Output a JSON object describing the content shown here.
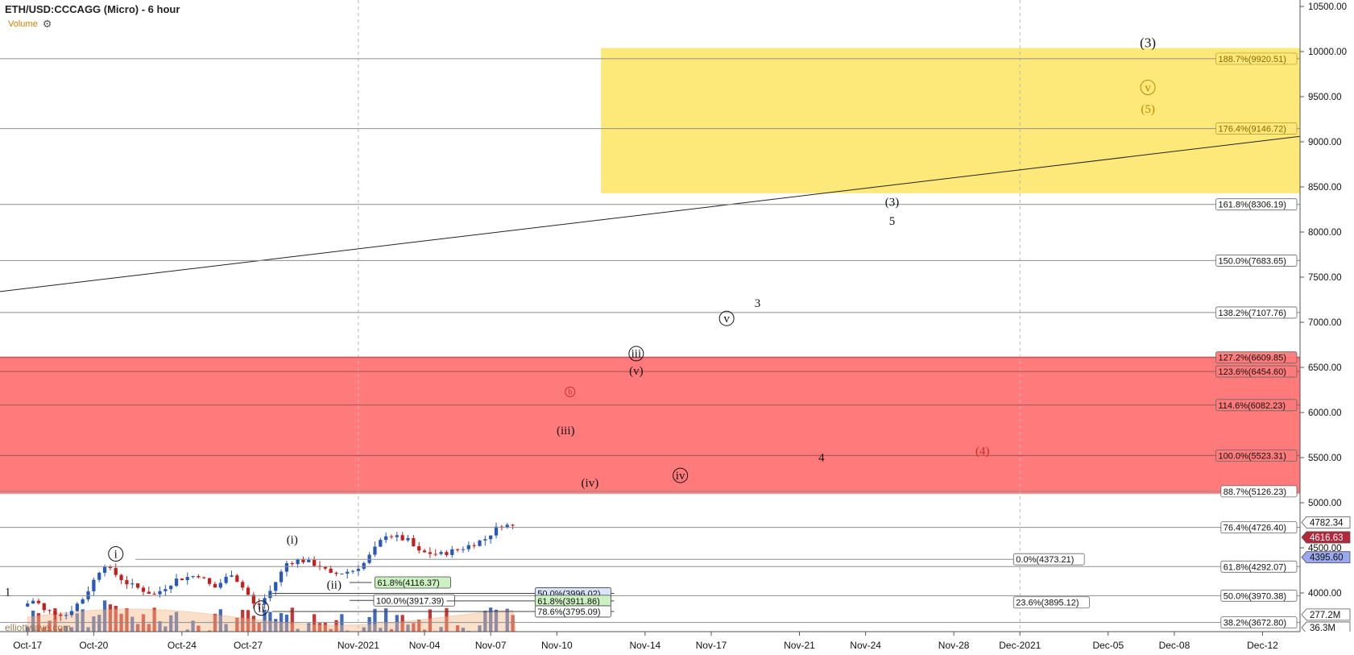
{
  "header": {
    "title": "ETH/USD:CCCAGG (Micro) - 6 hour",
    "volume_label": "Volume",
    "settings_icon": "gear-icon"
  },
  "watermark": "elliottwave.com",
  "colors": {
    "yellow_zone": "#fde97a",
    "red_zone": "#ff7a7a",
    "up": "#2a58b8",
    "down": "#c21f1f",
    "volume_up": "#2a58b8",
    "volume_down": "#c21f1f",
    "volume_ma": "#f6b98a",
    "price_tag_last": "#b3283a",
    "price_tag_blue": "#9aa8ee",
    "fib_green": "#cdf0c2",
    "fib_blue": "#d9e4fb",
    "wave_red": "#c92a2a",
    "wave_gold": "#b88a00"
  },
  "chart_data": {
    "type": "candlestick",
    "title": "ETH/USD:CCCAGG (Micro) - 6 hour",
    "y_axis": {
      "min": 3600,
      "max": 10600,
      "position": "right",
      "ticks": [
        {
          "value": 10500,
          "label": "10500.00"
        },
        {
          "value": 10000,
          "label": "10000.00"
        },
        {
          "value": 9500,
          "label": "9500.00"
        },
        {
          "value": 9000,
          "label": "9000.00"
        },
        {
          "value": 8500,
          "label": "8500.00"
        },
        {
          "value": 8000,
          "label": "8000.00"
        },
        {
          "value": 7500,
          "label": "7500.00"
        },
        {
          "value": 7000,
          "label": "7000.00"
        },
        {
          "value": 6500,
          "label": "6500.00"
        },
        {
          "value": 6000,
          "label": "6000.00"
        },
        {
          "value": 5500,
          "label": "5500.00"
        },
        {
          "value": 5000,
          "label": "5000.00"
        },
        {
          "value": 4500,
          "label": "4500.00"
        },
        {
          "value": 4000,
          "label": "4000.00"
        }
      ]
    },
    "x_axis": {
      "ticks": [
        {
          "day": 0,
          "label": "Oct-17"
        },
        {
          "day": 3,
          "label": "Oct-20"
        },
        {
          "day": 7,
          "label": "Oct-24"
        },
        {
          "day": 10,
          "label": "Oct-27"
        },
        {
          "day": 15,
          "label": "Nov-2021"
        },
        {
          "day": 18,
          "label": "Nov-04"
        },
        {
          "day": 21,
          "label": "Nov-07"
        },
        {
          "day": 24,
          "label": "Nov-10"
        },
        {
          "day": 28,
          "label": "Nov-14"
        },
        {
          "day": 31,
          "label": "Nov-17"
        },
        {
          "day": 35,
          "label": "Nov-21"
        },
        {
          "day": 38,
          "label": "Nov-24"
        },
        {
          "day": 42,
          "label": "Nov-28"
        },
        {
          "day": 45,
          "label": "Dec-2021"
        },
        {
          "day": 49,
          "label": "Dec-05"
        },
        {
          "day": 52,
          "label": "Dec-08"
        },
        {
          "day": 56,
          "label": "Dec-12"
        }
      ],
      "day_min": -1.25,
      "day_max": 57.7,
      "month_separators": [
        15,
        45
      ]
    },
    "zones": [
      {
        "name": "target-zone",
        "color": "yellow",
        "day_from": 26,
        "day_to": 57.7,
        "price_from": 8430,
        "price_to": 10040
      },
      {
        "name": "resistance-zone",
        "color": "red",
        "day_from": -1.25,
        "day_to": 57.7,
        "price_from": 5100,
        "price_to": 6620
      }
    ],
    "trendline": {
      "day_from": -1.25,
      "price_from": 7340,
      "day_to": 57.7,
      "price_to": 9060
    },
    "fib_levels_right": [
      {
        "label": "188.7%(9920.51)",
        "price": 9920.51,
        "style": "gold"
      },
      {
        "label": "176.4%(9146.72)",
        "price": 9146.72,
        "style": "gold"
      },
      {
        "label": "161.8%(8306.19)",
        "price": 8306.19,
        "style": "plain"
      },
      {
        "label": "150.0%(7683.65)",
        "price": 7683.65,
        "style": "plain"
      },
      {
        "label": "138.2%(7107.76)",
        "price": 7107.76,
        "style": "plain"
      },
      {
        "label": "127.2%(6609.85)",
        "price": 6609.85,
        "style": "red"
      },
      {
        "label": "123.6%(6454.60)",
        "price": 6454.6,
        "style": "red"
      },
      {
        "label": "114.6%(6082.23)",
        "price": 6082.23,
        "style": "red"
      },
      {
        "label": "100.0%(5523.31)",
        "price": 5523.31,
        "style": "red"
      },
      {
        "label": "88.7%(5126.23)",
        "price": 5126.23,
        "style": "plain"
      },
      {
        "label": "76.4%(4726.40)",
        "price": 4726.4,
        "style": "plain"
      },
      {
        "label": "61.8%(4292.07)",
        "price": 4292.07,
        "style": "plain"
      },
      {
        "label": "50.0%(3970.38)",
        "price": 3970.38,
        "style": "plain"
      },
      {
        "label": "38.2%(3672.80)",
        "price": 3672.8,
        "style": "plain"
      }
    ],
    "fib_levels_mid": [
      {
        "label": "0.0%(4373.21)",
        "price": 4373.21,
        "day_from": 4.9,
        "day_to": 45
      },
      {
        "label": "23.6%(3895.12)",
        "price": 3895.12,
        "day_from": 45,
        "day_to": 45
      }
    ],
    "fib_levels_local": [
      {
        "label": "61.8%(4116.37)",
        "price": 4116.37,
        "day_from": 14.6,
        "day_to": 15.6,
        "style": "green"
      },
      {
        "label": "50.0%(3996.02)",
        "price": 3996.02,
        "day_from": 11.1,
        "day_to": 26.6,
        "style": "blue"
      },
      {
        "label": "100.0%(3917.39)",
        "price": 3917.39,
        "day_from": 14.6,
        "day_to": 19.0,
        "style": "plain"
      },
      {
        "label": "61.8%(3911.86)",
        "price": 3911.86,
        "day_from": 19.0,
        "day_to": 26.6,
        "style": "green"
      },
      {
        "label": "78.6%(3795.09)",
        "price": 3795.09,
        "day_from": 11.1,
        "day_to": 26.6,
        "style": "plain"
      }
    ],
    "price_tags": [
      {
        "label": "4782.34",
        "price": 4782.34,
        "style": "white"
      },
      {
        "label": "4616.63",
        "price": 4616.63,
        "style": "last"
      },
      {
        "label": "4395.60",
        "price": 4395.6,
        "style": "blue"
      },
      {
        "label": "277.2M",
        "price": 3760,
        "style": "white"
      },
      {
        "label": "36.3M",
        "price": 3670,
        "style": "white"
      }
    ],
    "wave_labels": [
      {
        "text": "(3)",
        "day": 50.8,
        "price": 10050,
        "style": "plain-lg"
      },
      {
        "text": "v",
        "day": 50.8,
        "price": 9560,
        "style": "circled-gold"
      },
      {
        "text": "(5)",
        "day": 50.8,
        "price": 9320,
        "style": "gold"
      },
      {
        "text": "(3)",
        "day": 39.2,
        "price": 8290,
        "style": "plain"
      },
      {
        "text": "5",
        "day": 39.2,
        "price": 8080,
        "style": "plain"
      },
      {
        "text": "3",
        "day": 33.1,
        "price": 7170,
        "style": "plain"
      },
      {
        "text": "v",
        "day": 31.7,
        "price": 7000,
        "style": "circled"
      },
      {
        "text": "iii",
        "day": 27.6,
        "price": 6610,
        "style": "circled"
      },
      {
        "text": "(v)",
        "day": 27.6,
        "price": 6420,
        "style": "plain"
      },
      {
        "text": "b",
        "day": 24.6,
        "price": 6200,
        "style": "circled-red"
      },
      {
        "text": "(iii)",
        "day": 24.4,
        "price": 5760,
        "style": "plain"
      },
      {
        "text": "4",
        "day": 36.0,
        "price": 5460,
        "style": "plain"
      },
      {
        "text": "(4)",
        "day": 43.3,
        "price": 5530,
        "style": "red"
      },
      {
        "text": "iv",
        "day": 29.6,
        "price": 5260,
        "style": "circled"
      },
      {
        "text": "(iv)",
        "day": 25.5,
        "price": 5180,
        "style": "plain"
      },
      {
        "text": "(i)",
        "day": 12.0,
        "price": 4550,
        "style": "plain"
      },
      {
        "text": "i",
        "day": 4.0,
        "price": 4390,
        "style": "circled"
      },
      {
        "text": "(ii)",
        "day": 13.9,
        "price": 4050,
        "style": "plain"
      },
      {
        "text": "1",
        "day": -0.9,
        "price": 3970,
        "style": "plain"
      },
      {
        "text": "ii",
        "day": 10.6,
        "price": 3790,
        "style": "circled"
      }
    ]
  }
}
